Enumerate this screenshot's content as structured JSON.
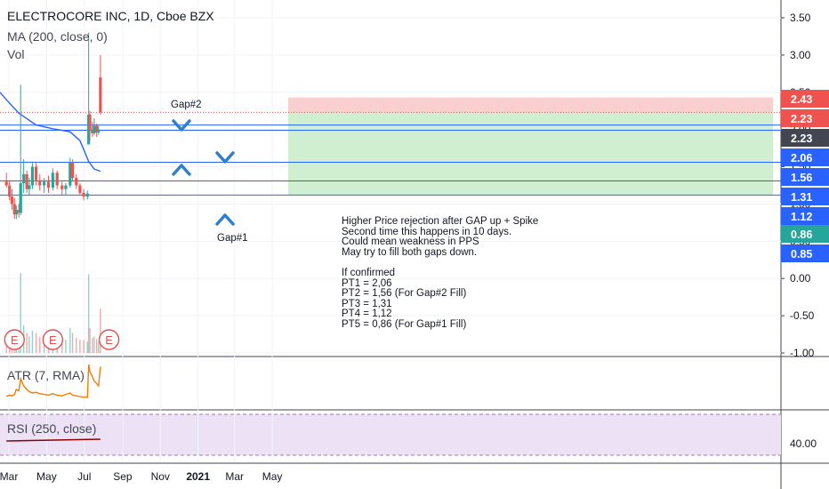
{
  "header": {
    "title": "ELECTROCORE INC, 1D, Cboe BZX",
    "ma_label": "MA (200, close, 0)",
    "vol_label": "Vol"
  },
  "indicators": {
    "atr_label": "ATR (7, RMA)",
    "rsi_label": "RSI (250, close)"
  },
  "annotations": {
    "gap2": "Gap#2",
    "gap1": "Gap#1",
    "earnings_marker": "E"
  },
  "note_lines": [
    "Higher Price rejection after GAP up + Spike",
    "Second time this happens in 10 days.",
    "Could mean weakness in PPS",
    "May try to fill  both gaps down.",
    "",
    "If confirmed",
    "PT1 = 2,06",
    "PT2 = 1,56 (For Gap#2 Fill)",
    "PT3 = 1,31",
    "PT4 = 1,12",
    "PT5 = 0,86 (For Gap#1 Fill)"
  ],
  "colors": {
    "up": "#26a69a",
    "down": "#ef5350",
    "ma": "#2962ff",
    "hline": "#2962ff",
    "stop_zone": "#f8c7c7",
    "target_zone": "#c8ecc9",
    "atr": "#f57c00",
    "rsi": "#8b0000",
    "rsi_bg": "#ede2f5",
    "earnings": "#e05050"
  },
  "chart_data": {
    "type": "candlestick",
    "symbol": "ELECTROCORE INC",
    "interval": "1D",
    "exchange": "Cboe BZX",
    "x_tick_labels": [
      "Mar",
      "May",
      "Jul",
      "Sep",
      "Nov",
      "2021",
      "Mar",
      "May"
    ],
    "y_axis_ticks": [
      "3.50",
      "3.00",
      "2.50",
      "2.00",
      "1.50",
      "1.00",
      "0.50",
      "0.00",
      "-0.50",
      "-1.00"
    ],
    "price_range": [
      -1.0,
      3.6
    ],
    "price_badges": [
      {
        "value": "2.43",
        "color": "#ef5350"
      },
      {
        "value": "2.23",
        "color": "#ef5350"
      },
      {
        "value": "2.23",
        "color": "#434651"
      },
      {
        "value": "2.06",
        "color": "#2962ff"
      },
      {
        "value": "1.56",
        "color": "#2962ff"
      },
      {
        "value": "1.31",
        "color": "#2962ff"
      },
      {
        "value": "1.12",
        "color": "#2962ff"
      },
      {
        "value": "0.86",
        "color": "#26a69a"
      },
      {
        "value": "0.85",
        "color": "#2962ff"
      }
    ],
    "horizontal_levels": [
      2.06,
      1.56,
      1.31,
      1.12,
      1.99
    ],
    "last_close": 2.23,
    "position": {
      "entry": 2.23,
      "stop": 2.43,
      "target": 1.12
    },
    "series": [
      {
        "date": "2020-02-26",
        "open": 1.3,
        "high": 1.42,
        "low": 1.22,
        "close": 1.25
      },
      {
        "date": "2020-03-02",
        "open": 1.25,
        "high": 1.32,
        "low": 1.05,
        "close": 1.1
      },
      {
        "date": "2020-03-06",
        "open": 1.1,
        "high": 1.2,
        "low": 0.92,
        "close": 1.0
      },
      {
        "date": "2020-03-10",
        "open": 1.0,
        "high": 1.08,
        "low": 0.8,
        "close": 0.86
      },
      {
        "date": "2020-03-13",
        "open": 0.86,
        "high": 0.98,
        "low": 0.8,
        "close": 0.92
      },
      {
        "date": "2020-03-17",
        "open": 0.92,
        "high": 1.0,
        "low": 0.82,
        "close": 0.88
      },
      {
        "date": "2020-03-20",
        "open": 0.88,
        "high": 2.6,
        "low": 0.85,
        "close": 1.28
      },
      {
        "date": "2020-03-25",
        "open": 1.28,
        "high": 1.6,
        "low": 1.15,
        "close": 1.4
      },
      {
        "date": "2020-03-30",
        "open": 1.4,
        "high": 1.45,
        "low": 1.15,
        "close": 1.2
      },
      {
        "date": "2020-04-03",
        "open": 1.2,
        "high": 1.35,
        "low": 1.12,
        "close": 1.25
      },
      {
        "date": "2020-04-08",
        "open": 1.25,
        "high": 1.55,
        "low": 1.2,
        "close": 1.5
      },
      {
        "date": "2020-04-14",
        "open": 1.5,
        "high": 1.55,
        "low": 1.25,
        "close": 1.32
      },
      {
        "date": "2020-04-20",
        "open": 1.32,
        "high": 1.4,
        "low": 1.18,
        "close": 1.25
      },
      {
        "date": "2020-04-27",
        "open": 1.25,
        "high": 1.35,
        "low": 1.15,
        "close": 1.3
      },
      {
        "date": "2020-05-04",
        "open": 1.3,
        "high": 1.38,
        "low": 1.15,
        "close": 1.22
      },
      {
        "date": "2020-05-11",
        "open": 1.22,
        "high": 1.48,
        "low": 1.18,
        "close": 1.42
      },
      {
        "date": "2020-05-18",
        "open": 1.42,
        "high": 1.45,
        "low": 1.2,
        "close": 1.25
      },
      {
        "date": "2020-05-26",
        "open": 1.25,
        "high": 1.3,
        "low": 1.12,
        "close": 1.2
      },
      {
        "date": "2020-06-01",
        "open": 1.2,
        "high": 1.28,
        "low": 1.12,
        "close": 1.25
      },
      {
        "date": "2020-06-08",
        "open": 1.25,
        "high": 1.62,
        "low": 1.22,
        "close": 1.56
      },
      {
        "date": "2020-06-12",
        "open": 1.56,
        "high": 1.6,
        "low": 1.3,
        "close": 1.35
      },
      {
        "date": "2020-06-18",
        "open": 1.35,
        "high": 1.4,
        "low": 1.2,
        "close": 1.25
      },
      {
        "date": "2020-06-24",
        "open": 1.25,
        "high": 1.28,
        "low": 1.12,
        "close": 1.15
      },
      {
        "date": "2020-06-30",
        "open": 1.15,
        "high": 1.2,
        "low": 1.05,
        "close": 1.1
      },
      {
        "date": "2020-07-06",
        "open": 1.1,
        "high": 1.18,
        "low": 1.06,
        "close": 1.14
      },
      {
        "date": "2020-07-08",
        "open": 1.8,
        "high": 3.3,
        "low": 1.8,
        "close": 2.2
      },
      {
        "date": "2020-07-10",
        "open": 2.2,
        "high": 2.25,
        "low": 1.85,
        "close": 2.0
      },
      {
        "date": "2020-07-14",
        "open": 2.0,
        "high": 2.1,
        "low": 1.9,
        "close": 1.95
      },
      {
        "date": "2020-07-17",
        "open": 1.95,
        "high": 2.15,
        "low": 1.92,
        "close": 2.05
      },
      {
        "date": "2020-07-21",
        "open": 2.05,
        "high": 2.08,
        "low": 1.9,
        "close": 1.96
      },
      {
        "date": "2020-07-24",
        "open": 1.96,
        "high": 2.05,
        "low": 1.93,
        "close": 2.0
      },
      {
        "date": "2020-07-27",
        "open": 2.7,
        "high": 3.0,
        "low": 2.2,
        "close": 2.23
      }
    ],
    "ma200": {
      "name": "MA (200, close, 0)",
      "points": [
        {
          "date": "2020-02-26",
          "value": 2.4
        },
        {
          "date": "2020-03-17",
          "value": 2.22
        },
        {
          "date": "2020-04-14",
          "value": 2.06
        },
        {
          "date": "2020-05-11",
          "value": 2.01
        },
        {
          "date": "2020-06-08",
          "value": 1.97
        },
        {
          "date": "2020-06-24",
          "value": 1.85
        },
        {
          "date": "2020-07-08",
          "value": 1.57
        },
        {
          "date": "2020-07-17",
          "value": 1.47
        },
        {
          "date": "2020-07-27",
          "value": 1.44
        }
      ]
    },
    "earnings_dates": [
      "2020-03-10",
      "2020-05-11",
      "2020-08-10"
    ],
    "atr": {
      "name": "ATR (7, RMA)",
      "values": [
        0.1,
        0.12,
        0.11,
        0.13,
        0.2,
        0.18,
        0.35,
        0.25,
        0.2,
        0.17,
        0.15,
        0.16,
        0.14,
        0.13,
        0.12,
        0.14,
        0.12,
        0.11,
        0.13,
        0.15,
        0.12,
        0.11,
        0.1,
        0.09,
        0.09,
        0.55,
        0.45,
        0.38,
        0.32,
        0.28,
        0.25,
        0.52
      ]
    },
    "rsi": {
      "name": "RSI (250, close)",
      "y_tick": "40.00",
      "level": 40
    }
  }
}
